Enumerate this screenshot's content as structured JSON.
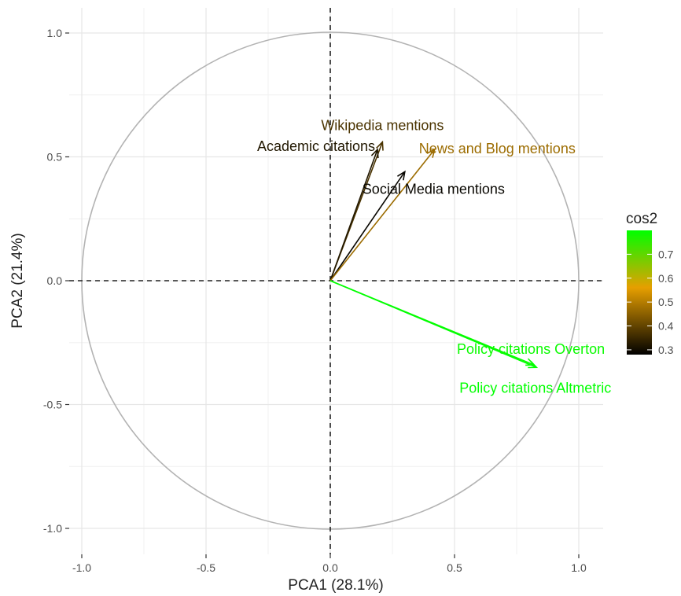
{
  "chart_data": {
    "type": "scatter",
    "subtype": "pca-variable-correlation-circle",
    "title": "",
    "xlabel": "PCA1 (28.1%)",
    "ylabel": "PCA2 (21.4%)",
    "xlim": [
      -1.05,
      1.05
    ],
    "ylim": [
      -1.05,
      1.05
    ],
    "xticks": [
      -1.0,
      -0.5,
      0.0,
      0.5,
      1.0
    ],
    "yticks": [
      -1.0,
      -0.5,
      0.0,
      0.5,
      1.0
    ],
    "xtick_labels": [
      "-1.0",
      "-0.5",
      "0.0",
      "0.5",
      "1.0"
    ],
    "ytick_labels": [
      "-1.0",
      "-0.5",
      "0.0",
      "0.5",
      "1.0"
    ],
    "grid": true,
    "unit_circle": true,
    "series": [
      {
        "label": "Wikipedia mentions",
        "x": 0.21,
        "y": 0.56,
        "cos2": 0.37
      },
      {
        "label": "Academic citations",
        "x": 0.19,
        "y": 0.53,
        "cos2": 0.32
      },
      {
        "label": "Social Media mentions",
        "x": 0.3,
        "y": 0.44,
        "cos2": 0.29
      },
      {
        "label": "News and Blog mentions",
        "x": 0.42,
        "y": 0.53,
        "cos2": 0.47
      },
      {
        "label": "Policy citations Overton",
        "x": 0.82,
        "y": -0.34,
        "cos2": 0.79
      },
      {
        "label": "Policy citations Altmetric",
        "x": 0.83,
        "y": -0.35,
        "cos2": 0.8
      }
    ],
    "legend": {
      "title": "cos2",
      "placement": "right",
      "range": [
        0.28,
        0.8
      ],
      "ticks": [
        "0.3",
        "0.4",
        "0.5",
        "0.6",
        "0.7"
      ],
      "tick_values": [
        0.3,
        0.4,
        0.5,
        0.6,
        0.7
      ],
      "gradient_colors": [
        "#000000",
        "#e69f00",
        "#00ff00"
      ]
    }
  }
}
